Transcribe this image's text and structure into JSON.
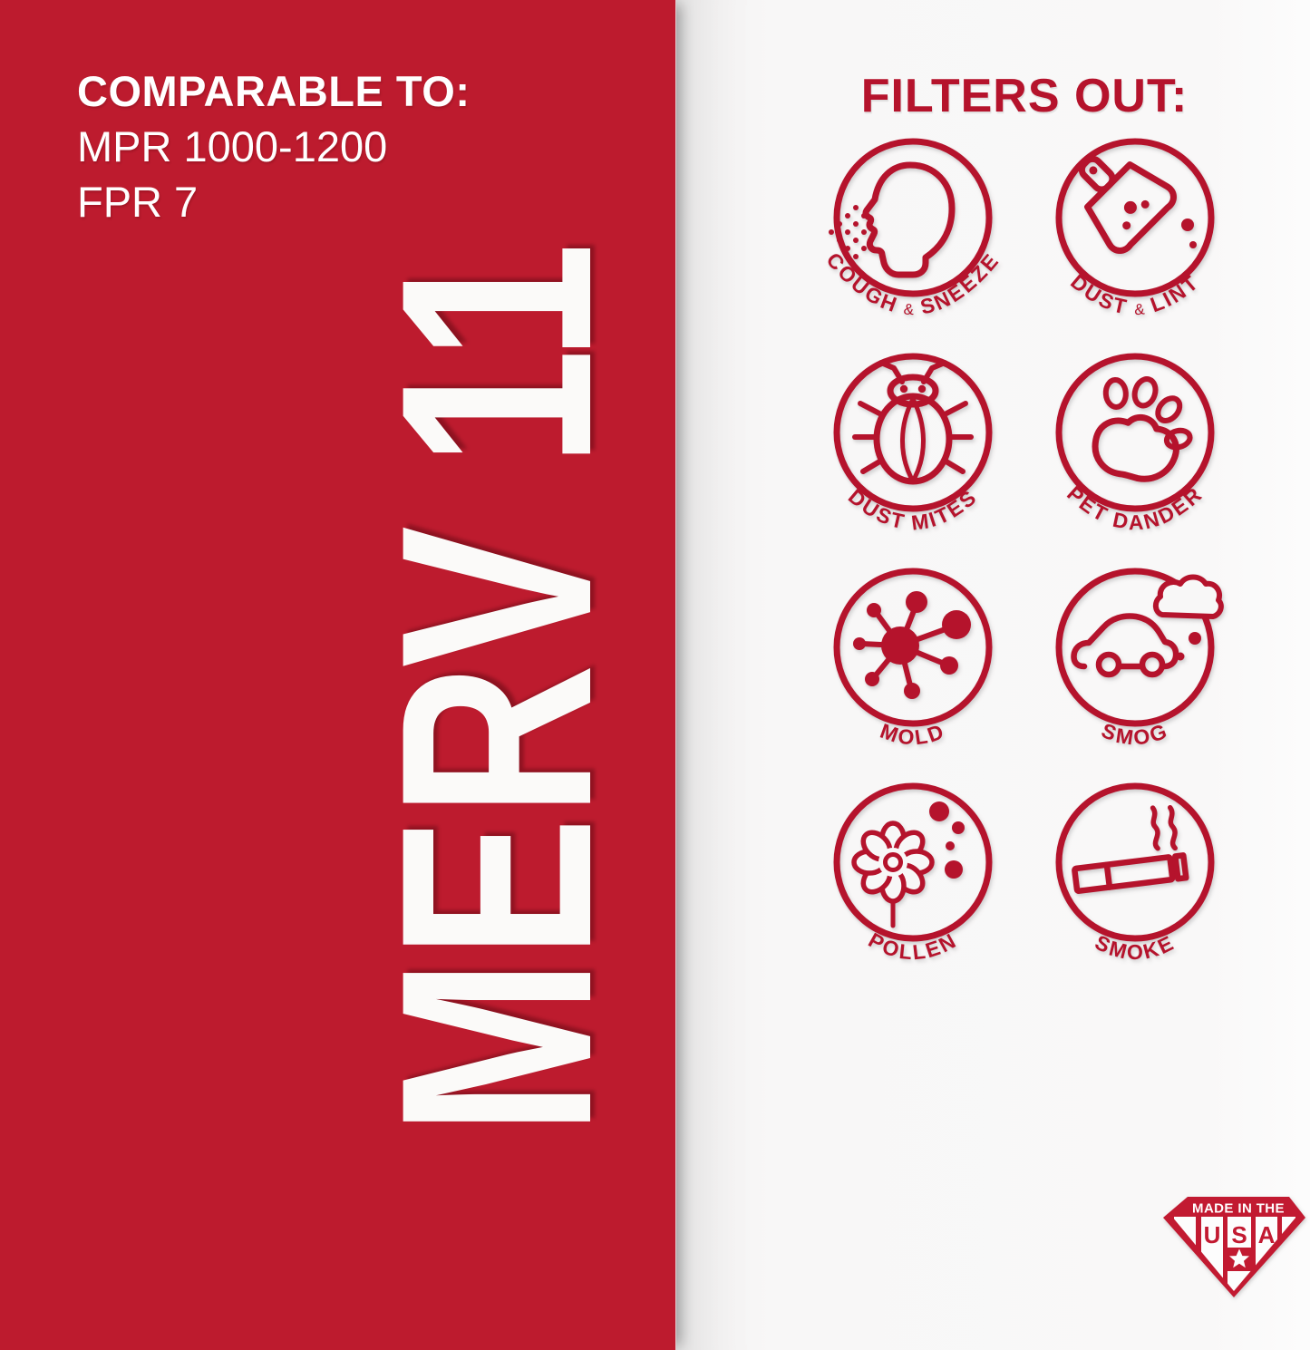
{
  "left_panel": {
    "comparable_heading": "COMPARABLE TO:",
    "comparable_line_1": "MPR 1000-1200",
    "comparable_line_2": "FPR 7",
    "merv_label": "MERV 11",
    "panel_color": "#bd1b2e"
  },
  "right_panel": {
    "heading": "FILTERS OUT:",
    "accent_color": "#b5132c",
    "filters": [
      {
        "label": "COUGH & SNEEZE",
        "icon": "sneezing-head-icon"
      },
      {
        "label": "DUST & LINT",
        "icon": "dustpan-icon"
      },
      {
        "label": "DUST MITES",
        "icon": "mite-bug-icon"
      },
      {
        "label": "PET DANDER",
        "icon": "paw-print-icon"
      },
      {
        "label": "MOLD",
        "icon": "mold-spores-icon"
      },
      {
        "label": "SMOG",
        "icon": "car-exhaust-icon"
      },
      {
        "label": "POLLEN",
        "icon": "flower-pollen-icon"
      },
      {
        "label": "SMOKE",
        "icon": "cigarette-smoke-icon"
      }
    ]
  },
  "badge": {
    "top_label": "MADE IN THE",
    "letters": [
      "U",
      "S",
      "A"
    ]
  }
}
